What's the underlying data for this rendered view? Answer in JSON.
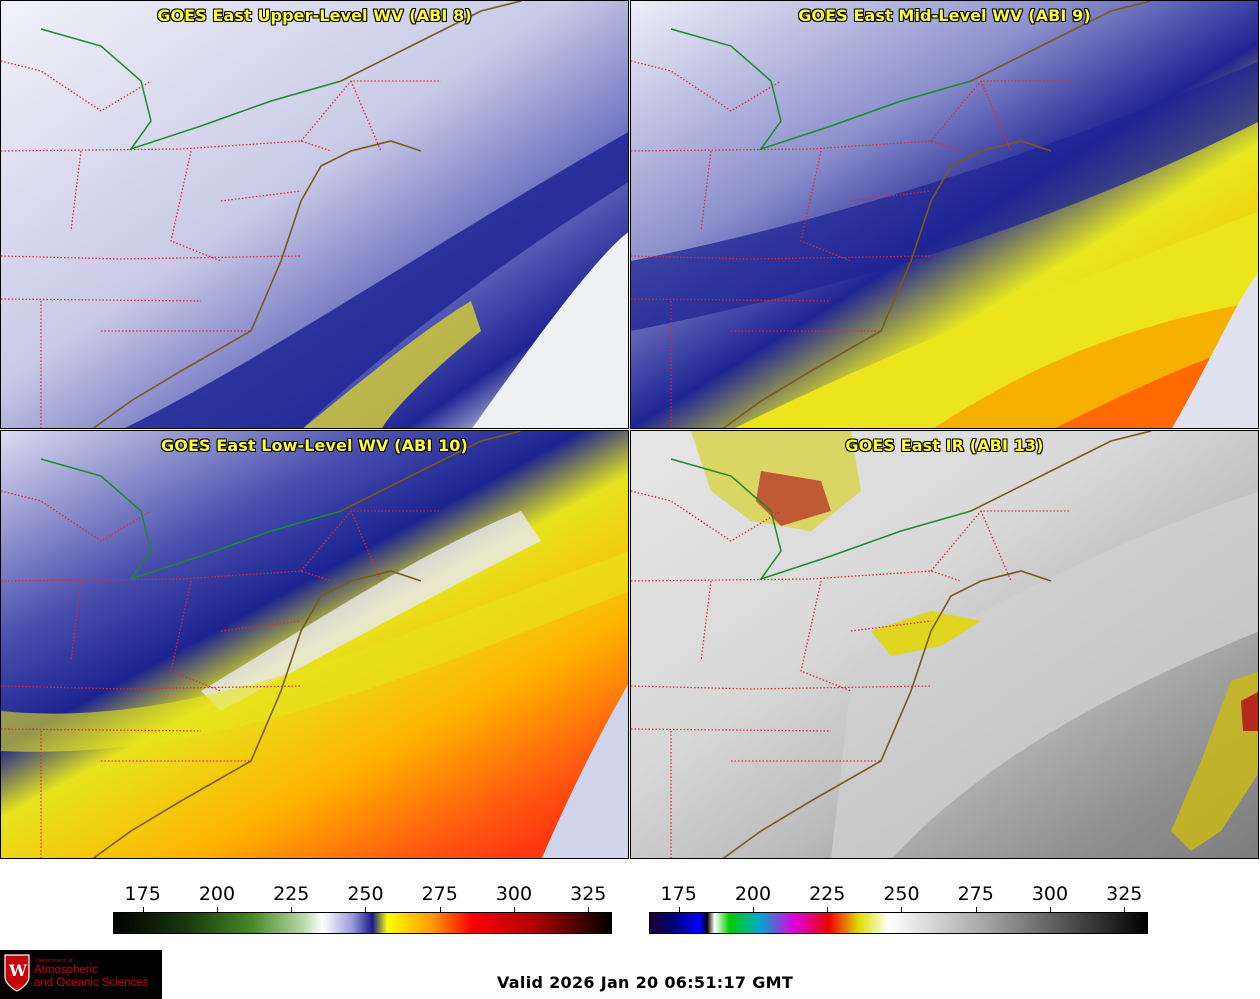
{
  "panels": [
    {
      "title": "GOES East Upper-Level WV (ABI 8)",
      "colormap": "wv"
    },
    {
      "title": "GOES East Mid-Level WV (ABI 9)",
      "colormap": "wv"
    },
    {
      "title": "GOES East Low-Level WV (ABI 10)",
      "colormap": "wv"
    },
    {
      "title": "GOES East IR (ABI 13)",
      "colormap": "ir"
    }
  ],
  "colorbars": [
    {
      "ticks": [
        "175",
        "200",
        "225",
        "250",
        "275",
        "300",
        "325"
      ]
    },
    {
      "ticks": [
        "175",
        "200",
        "225",
        "250",
        "275",
        "300",
        "325"
      ]
    }
  ],
  "logo": {
    "dept_label": "Department of",
    "line1": "Atmospheric",
    "line2": "and Oceanic Sciences",
    "crest_letter": "W"
  },
  "valid_time": "Valid 2026 Jan 20 06:51:17 GMT",
  "colors": {
    "state_borders": "#e8262a",
    "coastline": "#7a5a1a",
    "intl_border": "#1a8a2a"
  }
}
